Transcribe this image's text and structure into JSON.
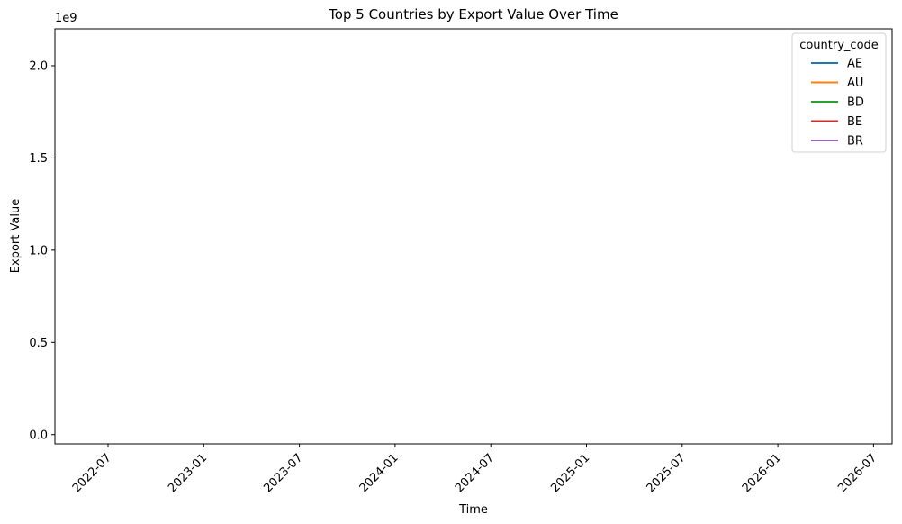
{
  "chart_data": {
    "type": "line",
    "title": "Top 5 Countries by Export Value Over Time",
    "xlabel": "Time",
    "ylabel": "Export Value",
    "y_offset_text": "1e9",
    "x_ticks": [
      "2022-07",
      "2023-01",
      "2023-07",
      "2024-01",
      "2024-07",
      "2025-01",
      "2025-07",
      "2026-01",
      "2026-07"
    ],
    "y_ticks": [
      "0.0",
      "0.5",
      "1.0",
      "1.5",
      "2.0"
    ],
    "y_tick_values": [
      0.0,
      0.5,
      1.0,
      1.5,
      2.0
    ],
    "ylim": [
      -0.05,
      2.2
    ],
    "grid": false,
    "legend": {
      "title": "country_code",
      "placement": "top-right"
    },
    "series": [
      {
        "name": "AE",
        "color": "#1f77b4",
        "x": [],
        "y": []
      },
      {
        "name": "AU",
        "color": "#ff7f0e",
        "x": [],
        "y": []
      },
      {
        "name": "BD",
        "color": "#2ca02c",
        "x": [],
        "y": []
      },
      {
        "name": "BE",
        "color": "#d62728",
        "x": [],
        "y": []
      },
      {
        "name": "BR",
        "color": "#9467bd",
        "x": [],
        "y": []
      }
    ]
  }
}
